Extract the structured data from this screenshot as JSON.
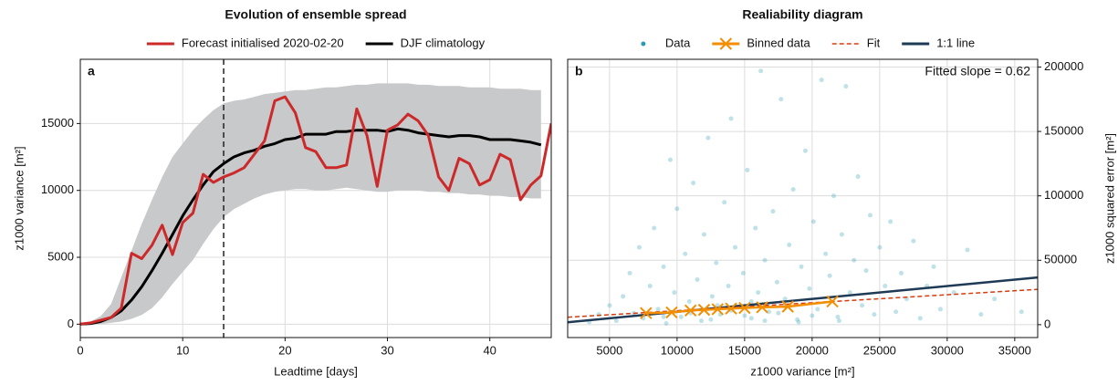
{
  "chart_data": [
    {
      "type": "line",
      "title": "Evolution of ensemble spread",
      "panel_label": "a",
      "xlabel": "Leadtime [days]",
      "ylabel": "z1000 variance [m²]",
      "x": [
        0,
        1,
        2,
        3,
        4,
        5,
        6,
        7,
        8,
        9,
        10,
        11,
        12,
        13,
        14,
        15,
        16,
        17,
        18,
        19,
        20,
        21,
        22,
        23,
        24,
        25,
        26,
        27,
        28,
        29,
        30,
        31,
        32,
        33,
        34,
        35,
        36,
        37,
        38,
        39,
        40,
        41,
        42,
        43,
        44,
        45,
        46
      ],
      "series": [
        {
          "name": "Forecast initialised 2020-02-20",
          "color": "#cc2a2a",
          "values": [
            0,
            100,
            300,
            500,
            1200,
            5300,
            4900,
            5900,
            7400,
            5200,
            7600,
            8300,
            11200,
            10600,
            11000,
            11300,
            11700,
            12700,
            13700,
            16700,
            17000,
            15800,
            13200,
            12900,
            11700,
            11700,
            11900,
            16100,
            14100,
            10300,
            14500,
            14900,
            15700,
            15200,
            14100,
            11000,
            10000,
            12400,
            12000,
            10400,
            10800,
            12700,
            12300,
            9300,
            10400,
            11100,
            15000
          ]
        },
        {
          "name": "DJF climatology",
          "color": "#000000",
          "values": [
            0,
            50,
            200,
            500,
            1000,
            1800,
            2800,
            4000,
            5300,
            6700,
            8100,
            9300,
            10400,
            11400,
            12000,
            12500,
            12800,
            13000,
            13300,
            13500,
            13800,
            13900,
            14200,
            14200,
            14200,
            14400,
            14400,
            14500,
            14500,
            14500,
            14400,
            14600,
            14500,
            14300,
            14200,
            14100,
            14000,
            14100,
            14100,
            14000,
            13800,
            13800,
            13800,
            13700,
            13600,
            13400,
            null
          ]
        }
      ],
      "band": {
        "color": "#c8c9cb",
        "upper": [
          0,
          200,
          600,
          1500,
          3500,
          5500,
          7500,
          9300,
          11000,
          12500,
          13500,
          14500,
          15300,
          16000,
          16500,
          16700,
          16800,
          17000,
          17200,
          17300,
          17400,
          17500,
          17500,
          17600,
          17700,
          17700,
          17800,
          17900,
          17900,
          18000,
          18000,
          18000,
          18000,
          17900,
          17900,
          17800,
          17800,
          17800,
          17700,
          17700,
          17700,
          17600,
          17600,
          17600,
          17500,
          17500,
          null
        ],
        "lower": [
          0,
          0,
          0,
          100,
          200,
          400,
          700,
          1200,
          2000,
          3000,
          3900,
          4800,
          6000,
          7100,
          8000,
          8600,
          9000,
          9400,
          9700,
          9900,
          10000,
          10100,
          10100,
          10000,
          10000,
          10100,
          10200,
          10100,
          10000,
          9900,
          9900,
          10000,
          10000,
          10000,
          9900,
          9900,
          9800,
          9800,
          9700,
          9700,
          9600,
          9600,
          9500,
          9500,
          9400,
          9400,
          null
        ]
      },
      "vline": 14,
      "xlim": [
        0,
        46
      ],
      "ylim": [
        -1000,
        19800
      ],
      "xticks": [
        0,
        10,
        20,
        30,
        40
      ],
      "yticks": [
        0,
        5000,
        10000,
        15000
      ],
      "grid": true,
      "yaxis": "left",
      "legend": "top"
    },
    {
      "type": "scatter",
      "title": "Realiability diagram",
      "panel_label": "b",
      "annotation": "Fitted slope = 0.62",
      "xlabel": "z1000 variance [m²]",
      "ylabel": "z1000 squared error [m²]",
      "series": [
        {
          "name": "Data",
          "color": "#2a9bb3",
          "kind": "scatter",
          "x": [
            3500,
            4200,
            5000,
            5500,
            6000,
            6500,
            6800,
            7200,
            7500,
            8000,
            8300,
            8600,
            9000,
            9200,
            9500,
            9800,
            10000,
            10300,
            10600,
            10900,
            11200,
            11500,
            11800,
            12000,
            12300,
            12600,
            12900,
            13200,
            13500,
            13800,
            14000,
            14300,
            14600,
            14900,
            15200,
            15500,
            15800,
            16000,
            16200,
            16500,
            16800,
            17100,
            17400,
            17700,
            18000,
            18300,
            18600,
            18900,
            19200,
            19500,
            19800,
            20100,
            20400,
            20700,
            21000,
            21300,
            21600,
            21900,
            22200,
            22500,
            22800,
            23100,
            23400,
            23700,
            24000,
            24300,
            24600,
            25000,
            25400,
            25800,
            26200,
            26600,
            27000,
            27500,
            28000,
            28500,
            29000,
            29500,
            30500,
            31500,
            32500,
            33500,
            35500,
            9000,
            11000,
            12500,
            14000,
            15000,
            16500,
            17500,
            19000,
            20000,
            22000,
            13000,
            15500,
            18000
          ],
          "values": [
            2000,
            8000,
            15000,
            3000,
            22000,
            40000,
            9000,
            60000,
            5000,
            30000,
            75000,
            12000,
            45000,
            1000,
            128000,
            25000,
            90000,
            6000,
            55000,
            18000,
            110000,
            35000,
            3000,
            70000,
            145000,
            22000,
            48000,
            8000,
            95000,
            30000,
            160000,
            60000,
            14000,
            40000,
            120000,
            5000,
            75000,
            25000,
            197000,
            50000,
            10000,
            88000,
            33000,
            175000,
            20000,
            62000,
            105000,
            4000,
            45000,
            135000,
            28000,
            80000,
            12000,
            190000,
            55000,
            38000,
            100000,
            6000,
            70000,
            185000,
            25000,
            50000,
            115000,
            15000,
            42000,
            85000,
            8000,
            60000,
            30000,
            80000,
            10000,
            40000,
            20000,
            65000,
            5000,
            30000,
            45000,
            12000,
            25000,
            58000,
            8000,
            20000,
            10000,
            6000,
            9000,
            4000,
            11000,
            7000,
            3000,
            9000,
            2000,
            7000,
            3000,
            15000,
            18000,
            14000
          ]
        },
        {
          "name": "Binned data",
          "color": "#f28e00",
          "kind": "line-marker",
          "x": [
            7700,
            9600,
            11000,
            12000,
            13000,
            14000,
            15000,
            16300,
            18200,
            21500
          ],
          "values": [
            9000,
            9500,
            11000,
            11500,
            12000,
            12500,
            13000,
            13500,
            14000,
            18000
          ]
        },
        {
          "name": "Fit",
          "color": "#d83b0f",
          "kind": "dashed",
          "x": [
            1900,
            36700
          ],
          "values": [
            5800,
            27400
          ]
        },
        {
          "name": "1:1 line",
          "color": "#1f3a55",
          "kind": "line",
          "x": [
            1900,
            36700
          ],
          "values": [
            1900,
            36700
          ]
        }
      ],
      "xlim": [
        1900,
        36700
      ],
      "ylim": [
        -10000,
        206000
      ],
      "xticks": [
        5000,
        10000,
        15000,
        20000,
        25000,
        30000,
        35000
      ],
      "yticks": [
        0,
        50000,
        100000,
        150000,
        200000
      ],
      "grid": true,
      "yaxis": "right",
      "legend": "top"
    }
  ]
}
